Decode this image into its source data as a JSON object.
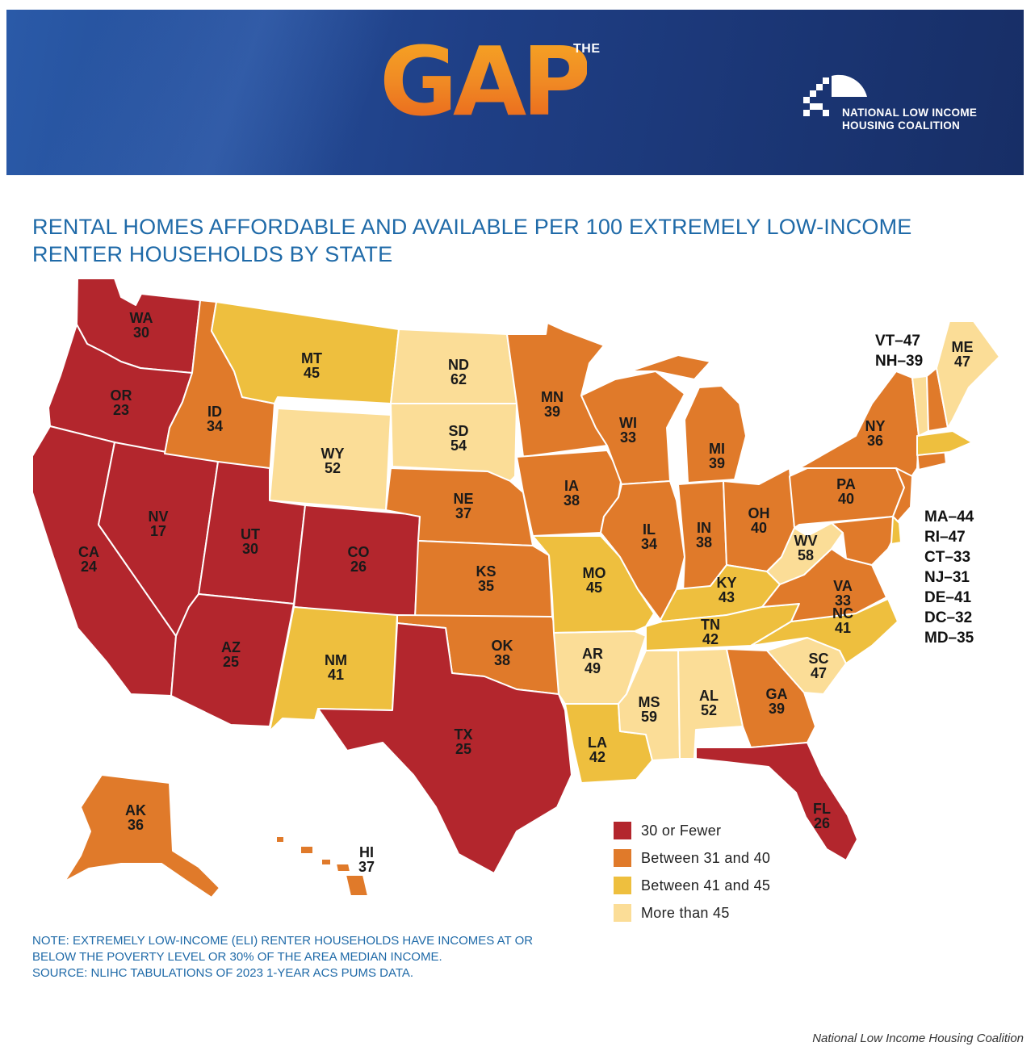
{
  "header": {
    "logo_the": "THE",
    "logo_word": "GAP",
    "org_name_line1": "NATIONAL LOW INCOME",
    "org_name_line2": "HOUSING COALITION"
  },
  "title": {
    "line1": "RENTAL HOMES AFFORDABLE AND AVAILABLE PER 100 EXTREMELY LOW-INCOME",
    "line2": "RENTER HOUSEHOLDS BY STATE"
  },
  "colors": {
    "thirty_or_fewer": "#b3262d",
    "between_31_40": "#e07a2a",
    "between_41_45": "#eebf3e",
    "more_than_45": "#fbdd97",
    "title_blue": "#1f6aa8"
  },
  "states": [
    {
      "code": "WA",
      "value": "30"
    },
    {
      "code": "OR",
      "value": "23"
    },
    {
      "code": "CA",
      "value": "24"
    },
    {
      "code": "NV",
      "value": "17"
    },
    {
      "code": "ID",
      "value": "34"
    },
    {
      "code": "MT",
      "value": "45"
    },
    {
      "code": "WY",
      "value": "52"
    },
    {
      "code": "UT",
      "value": "30"
    },
    {
      "code": "AZ",
      "value": "25"
    },
    {
      "code": "CO",
      "value": "26"
    },
    {
      "code": "NM",
      "value": "41"
    },
    {
      "code": "ND",
      "value": "62"
    },
    {
      "code": "SD",
      "value": "54"
    },
    {
      "code": "NE",
      "value": "37"
    },
    {
      "code": "KS",
      "value": "35"
    },
    {
      "code": "OK",
      "value": "38"
    },
    {
      "code": "TX",
      "value": "25"
    },
    {
      "code": "MN",
      "value": "39"
    },
    {
      "code": "IA",
      "value": "38"
    },
    {
      "code": "MO",
      "value": "45"
    },
    {
      "code": "AR",
      "value": "49"
    },
    {
      "code": "LA",
      "value": "42"
    },
    {
      "code": "WI",
      "value": "33"
    },
    {
      "code": "IL",
      "value": "34"
    },
    {
      "code": "MS",
      "value": "59"
    },
    {
      "code": "MI",
      "value": "39"
    },
    {
      "code": "IN",
      "value": "38"
    },
    {
      "code": "KY",
      "value": "43"
    },
    {
      "code": "TN",
      "value": "42"
    },
    {
      "code": "AL",
      "value": "52"
    },
    {
      "code": "OH",
      "value": "40"
    },
    {
      "code": "WV",
      "value": "58"
    },
    {
      "code": "GA",
      "value": "39"
    },
    {
      "code": "FL",
      "value": "26"
    },
    {
      "code": "SC",
      "value": "47"
    },
    {
      "code": "NC",
      "value": "41"
    },
    {
      "code": "VA",
      "value": "33"
    },
    {
      "code": "PA",
      "value": "40"
    },
    {
      "code": "NY",
      "value": "36"
    },
    {
      "code": "ME",
      "value": "47"
    },
    {
      "code": "AK",
      "value": "36"
    },
    {
      "code": "HI",
      "value": "37"
    }
  ],
  "small_states_top": [
    "VT–47",
    "NH–39"
  ],
  "small_states_list": [
    "MA–44",
    "RI–47",
    "CT–33",
    "NJ–31",
    "DE–41",
    "DC–32",
    "MD–35"
  ],
  "legend": [
    {
      "label": "30 or Fewer",
      "color": "#b3262d"
    },
    {
      "label": "Between 31 and 40",
      "color": "#e07a2a"
    },
    {
      "label": "Between 41 and 45",
      "color": "#eebf3e"
    },
    {
      "label": "More than 45",
      "color": "#fbdd97"
    }
  ],
  "notes": {
    "line1": "NOTE: EXTREMELY LOW-INCOME (ELI) RENTER HOUSEHOLDS HAVE INCOMES AT OR",
    "line2": "BELOW THE POVERTY LEVEL OR 30% OF THE AREA MEDIAN INCOME.",
    "line3": "SOURCE: NLIHC TABULATIONS OF 2023 1-YEAR ACS PUMS DATA."
  },
  "credit": "National Low Income Housing Coalition"
}
